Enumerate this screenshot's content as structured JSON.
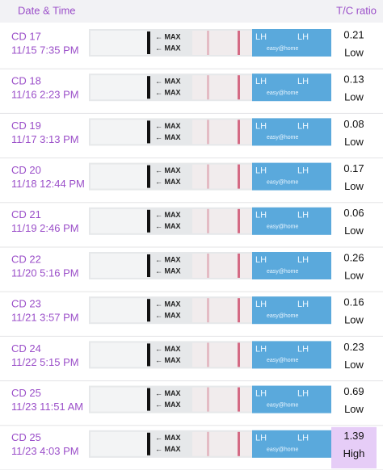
{
  "header": {
    "date_time": "Date & Time",
    "ratio": "T/C ratio"
  },
  "strip_text": {
    "max": "← MAX",
    "lh": "LH",
    "brand": "easy@home"
  },
  "rows": [
    {
      "day": "CD 17",
      "time": "11/15 7:35 PM",
      "ratio": 0.21,
      "level": "Low"
    },
    {
      "day": "CD 18",
      "time": "11/16 2:23 PM",
      "ratio": 0.13,
      "level": "Low"
    },
    {
      "day": "CD 19",
      "time": "11/17 3:13 PM",
      "ratio": 0.08,
      "level": "Low"
    },
    {
      "day": "CD 20",
      "time": "11/18 12:44 PM",
      "ratio": 0.17,
      "level": "Low"
    },
    {
      "day": "CD 21",
      "time": "11/19 2:46 PM",
      "ratio": 0.06,
      "level": "Low"
    },
    {
      "day": "CD 22",
      "time": "11/20 5:16 PM",
      "ratio": 0.26,
      "level": "Low"
    },
    {
      "day": "CD 23",
      "time": "11/21 3:57 PM",
      "ratio": 0.16,
      "level": "Low"
    },
    {
      "day": "CD 24",
      "time": "11/22 5:15 PM",
      "ratio": 0.23,
      "level": "Low"
    },
    {
      "day": "CD 25",
      "time": "11/23 11:51 AM",
      "ratio": 0.69,
      "level": "Low"
    },
    {
      "day": "CD 25",
      "time": "11/23 4:03 PM",
      "ratio": 1.39,
      "level": "High"
    }
  ]
}
